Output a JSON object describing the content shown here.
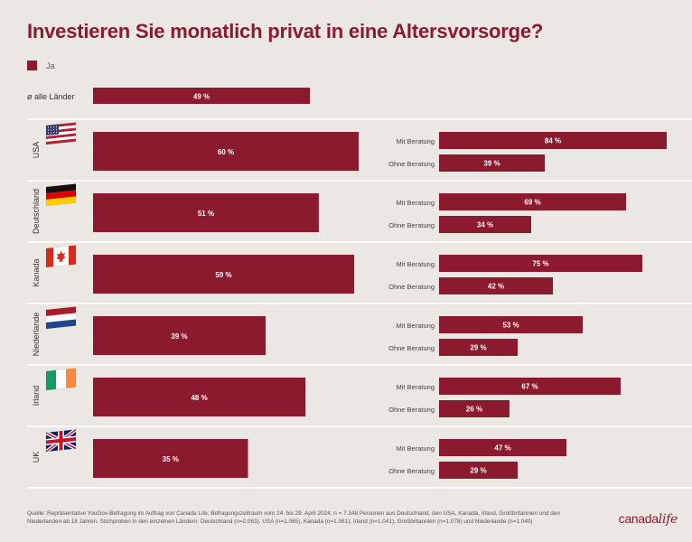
{
  "title": "Investieren Sie monatlich privat in eine Altersvorsorge?",
  "legend": {
    "label": "Ja",
    "color": "#8b1a2e"
  },
  "source": "Quelle: Repräsentative YouGov-Befragung im Auftrag von Canada Life; Befragungszeitraum vom 24. bis 29. April 2024; n = 7.348 Personen aus Deutschland, den USA, Kanada, Irland, Großbritannien und den Niederlanden ab 18 Jahren. Stichproben in den einzelnen Ländern: Deutschland (n=2.063), USA (n=1.065), Kanada (n=1.061); Irland (n=1.041), Großbritannien (n=1.078) und Niederlande (n=1.040)",
  "logo": {
    "text": "canada",
    "accent": "life"
  },
  "chart_data": {
    "type": "bar",
    "title": "Investieren Sie monatlich privat in eine Altersvorsorge?",
    "unit": "%",
    "bar_color": "#8b1a2e",
    "overall": {
      "label": "ø alle Länder",
      "value": 49,
      "value_label": "49 %"
    },
    "sublabels": [
      "Mit Beratung",
      "Ohne Beratung"
    ],
    "countries": [
      {
        "name": "USA",
        "flag": "us-flag-icon",
        "value": 60,
        "value_label": "60 %",
        "mit": 84,
        "mit_label": "84 %",
        "ohne": 39,
        "ohne_label": "39 %"
      },
      {
        "name": "Deutschland",
        "flag": "de-flag-icon",
        "value": 51,
        "value_label": "51 %",
        "mit": 69,
        "mit_label": "69 %",
        "ohne": 34,
        "ohne_label": "34 %"
      },
      {
        "name": "Kanada",
        "flag": "ca-flag-icon",
        "value": 59,
        "value_label": "59 %",
        "mit": 75,
        "mit_label": "75 %",
        "ohne": 42,
        "ohne_label": "42 %"
      },
      {
        "name": "Niederlande",
        "flag": "nl-flag-icon",
        "value": 39,
        "value_label": "39 %",
        "mit": 53,
        "mit_label": "53 %",
        "ohne": 29,
        "ohne_label": "29 %"
      },
      {
        "name": "Irland",
        "flag": "ie-flag-icon",
        "value": 48,
        "value_label": "48 %",
        "mit": 67,
        "mit_label": "67 %",
        "ohne": 26,
        "ohne_label": "26 %"
      },
      {
        "name": "UK",
        "flag": "uk-flag-icon",
        "value": 35,
        "value_label": "35 %",
        "mit": 47,
        "mit_label": "47 %",
        "ohne": 29,
        "ohne_label": "29 %"
      }
    ]
  }
}
